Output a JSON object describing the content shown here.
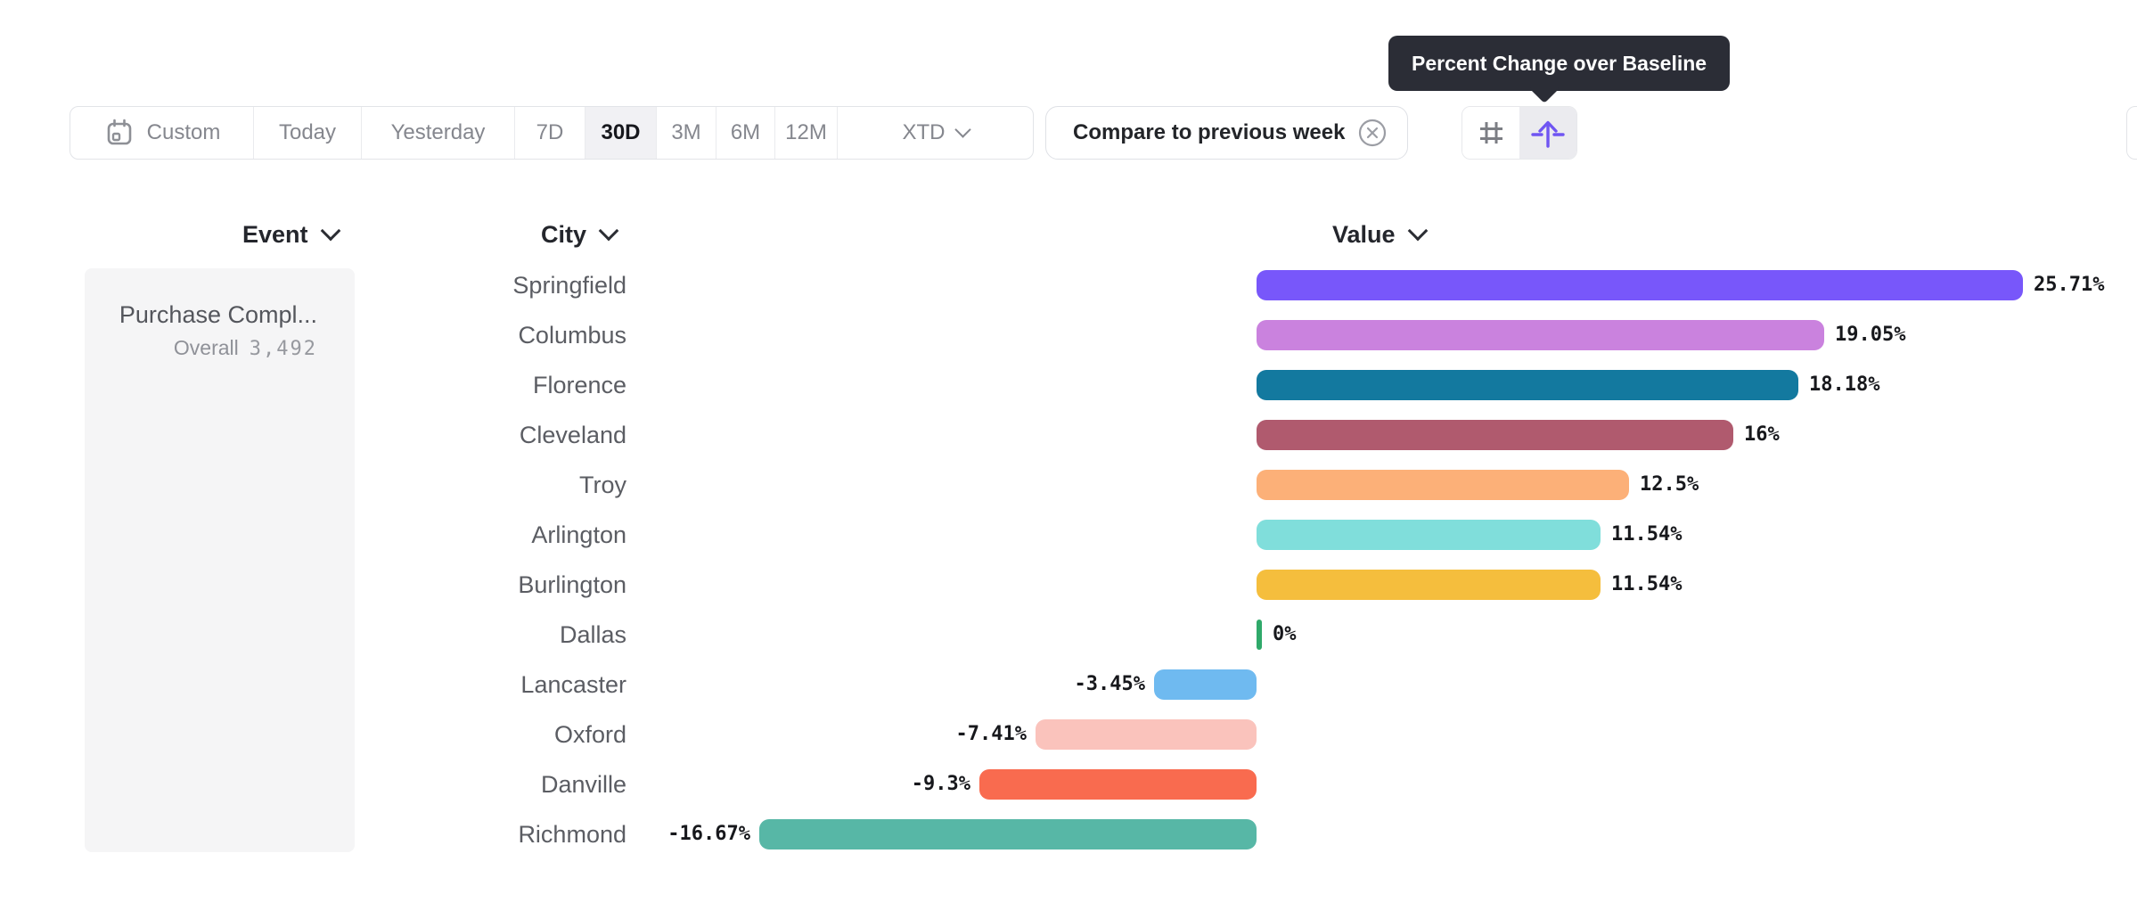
{
  "tooltip": {
    "text": "Percent Change over Baseline"
  },
  "toolbar": {
    "ranges": [
      {
        "label": "Custom",
        "icon": "calendar-icon",
        "selected": false
      },
      {
        "label": "Today",
        "selected": false
      },
      {
        "label": "Yesterday",
        "selected": false
      },
      {
        "label": "7D",
        "selected": false
      },
      {
        "label": "30D",
        "selected": true
      },
      {
        "label": "3M",
        "selected": false
      },
      {
        "label": "6M",
        "selected": false
      },
      {
        "label": "12M",
        "selected": false
      },
      {
        "label": "XTD",
        "dropdown": true,
        "selected": false
      }
    ],
    "compare_chip": {
      "label": "Compare to previous week",
      "close_icon": "circle-x-icon"
    },
    "view_toggle": [
      {
        "icon": "hash-icon",
        "selected": false
      },
      {
        "icon": "baseline-arrow-icon",
        "selected": true,
        "tooltip": "Percent Change over Baseline"
      }
    ]
  },
  "columns": {
    "event": "Event",
    "city": "City",
    "value": "Value"
  },
  "event_card": {
    "title": "Purchase Compl...",
    "overall_label": "Overall",
    "overall_value": "3,492"
  },
  "chart_data": {
    "type": "bar",
    "orientation": "horizontal",
    "value_label": "Percent Change over Baseline",
    "value_format": "percent",
    "baseline": 0,
    "xlim": [
      -16.67,
      25.71
    ],
    "grid": false,
    "categories": [
      "Springfield",
      "Columbus",
      "Florence",
      "Cleveland",
      "Troy",
      "Arlington",
      "Burlington",
      "Dallas",
      "Lancaster",
      "Oxford",
      "Danville",
      "Richmond"
    ],
    "values": [
      25.71,
      19.05,
      18.18,
      16,
      12.5,
      11.54,
      11.54,
      0,
      -3.45,
      -7.41,
      -9.3,
      -16.67
    ],
    "rows": [
      {
        "city": "Springfield",
        "value": 25.71,
        "label": "25.71%",
        "color": "#7857fa"
      },
      {
        "city": "Columbus",
        "value": 19.05,
        "label": "19.05%",
        "color": "#ca82de"
      },
      {
        "city": "Florence",
        "value": 18.18,
        "label": "18.18%",
        "color": "#13799f"
      },
      {
        "city": "Cleveland",
        "value": 16,
        "label": "16%",
        "color": "#b05a6e"
      },
      {
        "city": "Troy",
        "value": 12.5,
        "label": "12.5%",
        "color": "#fcb078"
      },
      {
        "city": "Arlington",
        "value": 11.54,
        "label": "11.54%",
        "color": "#80dedb"
      },
      {
        "city": "Burlington",
        "value": 11.54,
        "label": "11.54%",
        "color": "#f5be3d"
      },
      {
        "city": "Dallas",
        "value": 0,
        "label": "0%",
        "color": "#2fa96a"
      },
      {
        "city": "Lancaster",
        "value": -3.45,
        "label": "-3.45%",
        "color": "#6fbaf0"
      },
      {
        "city": "Oxford",
        "value": -7.41,
        "label": "-7.41%",
        "color": "#fac3bc"
      },
      {
        "city": "Danville",
        "value": -9.3,
        "label": "-9.3%",
        "color": "#f96b4f"
      },
      {
        "city": "Richmond",
        "value": -16.67,
        "label": "-16.67%",
        "color": "#57b7a6"
      }
    ]
  },
  "colors": {
    "tooltip_bg": "#2b2d36",
    "accent_purple": "#6f55f2",
    "selected_segment_bg": "#f1f1f4",
    "border": "#e2e4e8",
    "card_bg": "#f5f5f6",
    "baseline_tick_green": "#2fa96a"
  }
}
